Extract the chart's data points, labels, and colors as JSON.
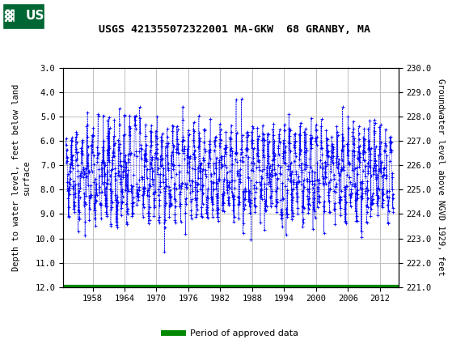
{
  "title": "USGS 421355072322001 MA-GKW  68 GRANBY, MA",
  "ylabel_left": "Depth to water level, feet below land\nsurface",
  "ylabel_right": "Groundwater level above NGVD 1929, feet",
  "ylim_left": [
    12.0,
    3.0
  ],
  "ylim_right": [
    221.0,
    230.0
  ],
  "yticks_left": [
    3.0,
    4.0,
    5.0,
    6.0,
    7.0,
    8.0,
    9.0,
    10.0,
    11.0,
    12.0
  ],
  "yticks_right": [
    221.0,
    222.0,
    223.0,
    224.0,
    225.0,
    226.0,
    227.0,
    228.0,
    229.0,
    230.0
  ],
  "xticks": [
    1958,
    1964,
    1970,
    1976,
    1982,
    1988,
    1994,
    2000,
    2006,
    2012
  ],
  "xlim": [
    1952.5,
    2015.5
  ],
  "data_color": "#0000FF",
  "green_color": "#008800",
  "header_bg": "#006633",
  "background_color": "#ffffff",
  "plot_bg_color": "#ffffff",
  "grid_color": "#c0c0c0",
  "legend_label": "Period of approved data",
  "seed": 42
}
